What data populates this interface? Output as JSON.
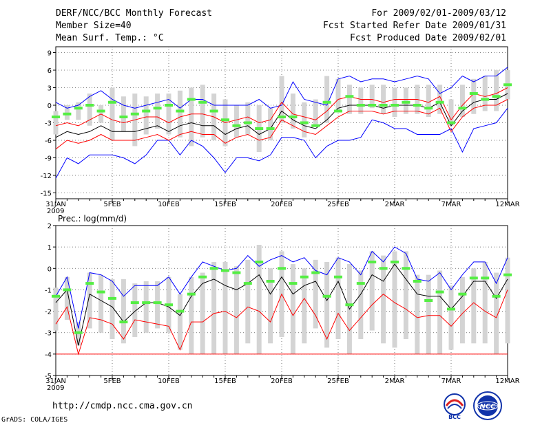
{
  "header": {
    "title": "DERF/NCC/BCC Monthly Forecast",
    "member_size": "Member Size=40",
    "variable1": "Mean Surf. Temp.: °C",
    "period": "For 2009/02/01-2009/03/12",
    "started": "Fcst Started Refer Date 2009/01/31",
    "produced": "Fcst Produced Date 2009/02/01"
  },
  "footer": {
    "url": "http://cmdp.ncc.cma.gov.cn",
    "grads": "GrADS: COLA/IGES",
    "logo_bcc": "BCC",
    "logo_ncc": "NCC"
  },
  "colors": {
    "max_line": "#0000ff",
    "mean_line": "#000000",
    "min_line": "#ff0000",
    "box": "#d4d4d4",
    "median": "#55ee44"
  },
  "chart_data": [
    {
      "type": "box-plot-with-lines",
      "title": "Mean Surf. Temp.: °C",
      "x_ticks": [
        "31JAN",
        "5FEB",
        "10FEB",
        "15FEB",
        "20FEB",
        "25FEB",
        "2MAR",
        "7MAR",
        "12MAR"
      ],
      "x_tick_days": [
        0,
        5,
        10,
        15,
        20,
        25,
        30,
        35,
        40
      ],
      "x_year_label": "2009",
      "ylim": [
        -16,
        10
      ],
      "y_ticks": [
        9,
        6,
        3,
        0,
        -3,
        -6,
        -9,
        -12,
        -15
      ],
      "days": [
        0,
        1,
        2,
        3,
        4,
        5,
        6,
        7,
        8,
        9,
        10,
        11,
        12,
        13,
        14,
        15,
        16,
        17,
        18,
        19,
        20,
        21,
        22,
        23,
        24,
        25,
        26,
        27,
        28,
        29,
        30,
        31,
        32,
        33,
        34,
        35,
        36,
        37,
        38,
        39,
        40
      ],
      "max": [
        -12.5,
        -9,
        -10,
        -8.5,
        -8.5,
        -8.5,
        -9,
        -10,
        -8.5,
        -6,
        -6,
        -8.5,
        -6,
        -7,
        -9,
        -11.5,
        -9,
        -9,
        -9.5,
        -8.5,
        -5.5,
        -5.5,
        -6,
        -9,
        -7,
        -6,
        -6,
        -5.5,
        -2.5,
        -3,
        -4,
        -4,
        -5,
        -5,
        -5,
        -4,
        -8,
        -4,
        -3.5,
        -3,
        -0.5
      ],
      "max_label": "upper envelope",
      "upper": [
        0.5,
        -0.5,
        0,
        1.5,
        2.5,
        1,
        0,
        -0.5,
        0,
        0.5,
        1,
        -0.5,
        1,
        1,
        0,
        0,
        0,
        0,
        1,
        -0.5,
        0,
        4,
        1,
        0.5,
        0,
        4.5,
        5,
        4,
        4.5,
        4.5,
        4,
        4.5,
        5,
        4.5,
        2,
        3,
        5,
        4,
        5,
        5,
        6.5
      ],
      "mean_hi": [
        -3.5,
        -3,
        -3.5,
        -2.5,
        -1.5,
        -2.5,
        -3,
        -2.5,
        -2,
        -2,
        -3,
        -2,
        -1.5,
        -1.5,
        -2,
        -3,
        -2.5,
        -2,
        -3,
        -2.5,
        0.5,
        -1.5,
        -2,
        -2.5,
        -1,
        1,
        1.5,
        1,
        1,
        0.5,
        1,
        1,
        1,
        0.5,
        1.5,
        -2.5,
        0,
        2,
        1.5,
        2,
        3
      ],
      "mean": [
        -5.5,
        -4.5,
        -5,
        -4.5,
        -3.5,
        -4.5,
        -4.5,
        -4.5,
        -4,
        -3.5,
        -4.5,
        -3.5,
        -3,
        -3.5,
        -3.5,
        -5,
        -4,
        -3.5,
        -5,
        -4,
        -1,
        -2.5,
        -3.5,
        -4,
        -2.5,
        -0.5,
        0,
        0,
        0,
        -0.5,
        0,
        0,
        0,
        -0.5,
        0.5,
        -3.5,
        -1,
        0.5,
        1,
        1,
        2
      ],
      "mean_lo": [
        -7.5,
        -6,
        -6.5,
        -6,
        -5,
        -6,
        -6,
        -6,
        -5.5,
        -5,
        -6,
        -5,
        -4.5,
        -5,
        -5,
        -6.5,
        -5.5,
        -5,
        -6,
        -5.5,
        -2.5,
        -3.5,
        -4.5,
        -5,
        -3.5,
        -2,
        -1,
        -1,
        -1,
        -1.5,
        -1,
        -1,
        -1,
        -1.5,
        -0.5,
        -4.5,
        -2,
        -0.5,
        0,
        0,
        1
      ],
      "box_top": [
        -1,
        0,
        0.5,
        2,
        0,
        3,
        1.5,
        2,
        1.5,
        2,
        2,
        2.5,
        3,
        3.5,
        2,
        1,
        0,
        0.5,
        0,
        -0.5,
        5,
        2,
        0.5,
        1,
        5,
        4.5,
        3.5,
        3,
        3.5,
        3.5,
        3,
        3,
        3.5,
        3.5,
        3.5,
        1,
        3.5,
        4.5,
        5,
        6,
        6
      ],
      "box_bot": [
        -5,
        -2.5,
        -2.5,
        -3.5,
        -3,
        -6,
        -4.5,
        -7,
        -5,
        -4,
        -5,
        -5.5,
        -7,
        -5.5,
        -6,
        -7,
        -5.5,
        -5,
        -8,
        -6,
        -3,
        -4,
        -5.5,
        -3.5,
        -3,
        -1,
        -1.5,
        -1.5,
        -0.5,
        -1.5,
        -2,
        -1.5,
        -1.5,
        -2,
        -1.5,
        -3.5,
        -2,
        -1.5,
        -1,
        -1,
        1
      ],
      "median": [
        -2,
        -1.5,
        -0.5,
        0,
        -1,
        0.5,
        -2,
        -1.5,
        -1,
        -0.5,
        0,
        -1,
        1,
        0.5,
        -1,
        -2.5,
        -3.5,
        -3,
        -4,
        -4,
        -2,
        -2,
        -3,
        -3.5,
        0.5,
        -1,
        1.5,
        0,
        0,
        0,
        0,
        0.5,
        0,
        -0.5,
        0.5,
        -3,
        -0.5,
        2,
        1,
        1.5,
        3.5
      ]
    },
    {
      "type": "box-plot-with-lines",
      "title": "Prec.: log(mm/d)",
      "x_ticks": [
        "31JAN",
        "5FEB",
        "10FEB",
        "15FEB",
        "20FEB",
        "25FEB",
        "2MAR",
        "7MAR",
        "12MAR"
      ],
      "x_tick_days": [
        0,
        5,
        10,
        15,
        20,
        25,
        30,
        35,
        40
      ],
      "x_year_label": "2009",
      "ylim": [
        -5,
        2
      ],
      "y_ticks": [
        2,
        1,
        0,
        -1,
        -2,
        -3,
        -4,
        -5
      ],
      "days": [
        0,
        1,
        2,
        3,
        4,
        5,
        6,
        7,
        8,
        9,
        10,
        11,
        12,
        13,
        14,
        15,
        16,
        17,
        18,
        19,
        20,
        21,
        22,
        23,
        24,
        25,
        26,
        27,
        28,
        29,
        30,
        31,
        32,
        33,
        34,
        35,
        36,
        37,
        38,
        39,
        40
      ],
      "upper": [
        -1.3,
        -0.4,
        -2.8,
        -0.2,
        -0.3,
        -0.6,
        -1.3,
        -0.8,
        -0.8,
        -0.8,
        -0.4,
        -1.2,
        -0.4,
        0.3,
        0.1,
        -0.1,
        0,
        0.6,
        0.1,
        0.4,
        0.6,
        0.3,
        0.5,
        -0.1,
        -0.3,
        0.5,
        0.3,
        -0.3,
        0.8,
        0.3,
        1,
        0.7,
        -0.5,
        -0.6,
        -0.2,
        -1,
        -0.3,
        0.3,
        0.3,
        -0.7,
        0.5
      ],
      "mean": [
        -1.6,
        -1,
        -3.6,
        -1.2,
        -1.5,
        -1.8,
        -2.5,
        -2,
        -1.6,
        -1.6,
        -1.8,
        -2.2,
        -1.3,
        -0.7,
        -0.5,
        -0.8,
        -1,
        -0.7,
        -0.3,
        -1.2,
        -0.4,
        -1.2,
        -0.8,
        -0.6,
        -1.5,
        -0.6,
        -1.9,
        -1.2,
        -0.3,
        -0.6,
        0.2,
        -0.5,
        -1.2,
        -1.3,
        -1.3,
        -1.9,
        -1.3,
        -0.6,
        -0.6,
        -1.4,
        -0.5
      ],
      "lower": [
        -2.6,
        -1.8,
        -4,
        -2.3,
        -2.4,
        -2.6,
        -3.3,
        -2.4,
        -2.5,
        -2.6,
        -2.7,
        -3.8,
        -2.5,
        -2.5,
        -2.1,
        -2,
        -2.3,
        -1.8,
        -2,
        -2.5,
        -1.2,
        -2.2,
        -1.4,
        -2.2,
        -3.3,
        -2.1,
        -2.9,
        -2.3,
        -1.7,
        -1.2,
        -1.6,
        -1.9,
        -2.3,
        -2.2,
        -2.2,
        -2.7,
        -2.1,
        -1.6,
        -2,
        -2.3,
        -1
      ],
      "floor": -4,
      "box_top": [
        -0.9,
        -0.4,
        -2.5,
        -0.2,
        -0.3,
        -0.5,
        -0.5,
        -0.7,
        -0.6,
        -0.6,
        -0.4,
        -1.2,
        -0.4,
        -0.2,
        0.3,
        0.3,
        0.1,
        0.4,
        1.1,
        0,
        0.8,
        0.2,
        0,
        0.4,
        0.3,
        0.5,
        0.2,
        -0.1,
        0.8,
        0.6,
        0.8,
        0.8,
        -0.3,
        -0.3,
        -0.1,
        -0.8,
        -0.4,
        0,
        0.3,
        -0.2,
        0.5
      ],
      "box_bot": [
        -2.9,
        -2.4,
        -3.6,
        -2.8,
        -3,
        -3.3,
        -3.5,
        -3.2,
        -3,
        -2.8,
        -3,
        -3.8,
        -4,
        -4,
        -4,
        -4,
        -4,
        -3.5,
        -4,
        -3.5,
        -3.2,
        -4,
        -3.5,
        -2.8,
        -3.7,
        -3.3,
        -4,
        -3.3,
        -2.9,
        -3.5,
        -3.7,
        -3.3,
        -4,
        -4,
        -4,
        -3.8,
        -3.5,
        -3.5,
        -3.5,
        -4,
        -3.5
      ],
      "median": [
        -1.3,
        -1,
        -3,
        -0.7,
        -1.1,
        -1.4,
        -2.5,
        -1.6,
        -1.6,
        -1.6,
        -1.7,
        -2,
        -1.2,
        -0.4,
        0,
        -0.1,
        -0.2,
        -0.7,
        0.3,
        -0.6,
        0,
        -0.7,
        -0.4,
        -0.2,
        -1.3,
        -0.4,
        -1.7,
        -0.7,
        0.3,
        0,
        0.3,
        0,
        -0.6,
        -1.5,
        -1.1,
        -1.9,
        -1.2,
        -0.45,
        -0.45,
        -1.3,
        -0.3
      ]
    }
  ]
}
